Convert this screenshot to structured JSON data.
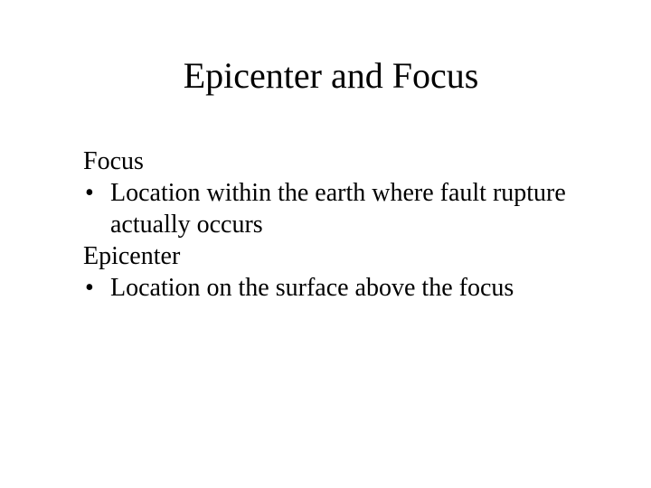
{
  "slide": {
    "title": "Epicenter and Focus",
    "title_fontsize": 40,
    "body_fontsize": 28,
    "background_color": "#ffffff",
    "text_color": "#000000",
    "font_family": "Times New Roman",
    "bullet_char": "•",
    "sections": [
      {
        "term": "Focus",
        "bullet": "Location within the earth where fault rupture actually occurs"
      },
      {
        "term": "Epicenter",
        "bullet": "Location on the surface above the focus"
      }
    ]
  }
}
